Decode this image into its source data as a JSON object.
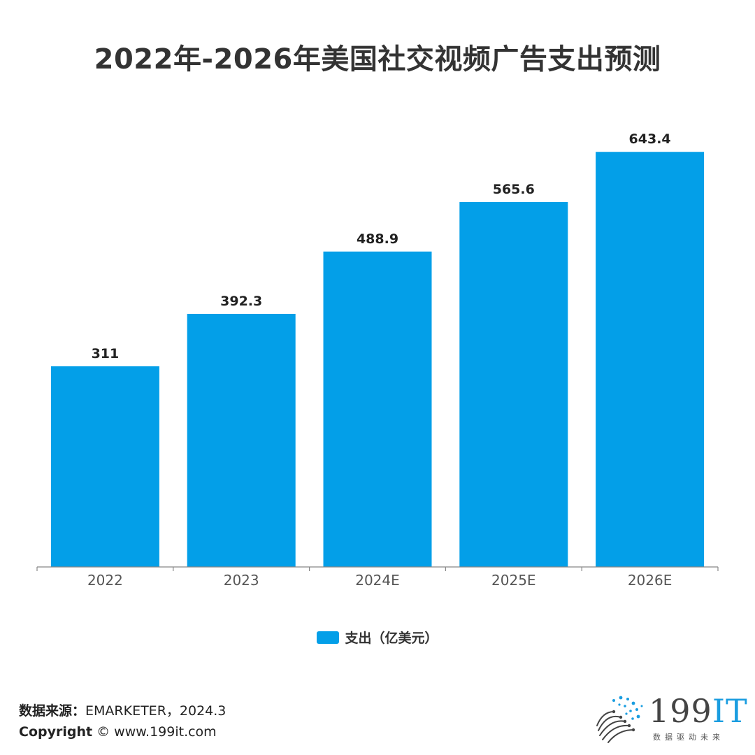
{
  "chart_data": {
    "type": "bar",
    "title": "2022年-2026年美国社交视频广告支出预测",
    "categories": [
      "2022",
      "2023",
      "2024E",
      "2025E",
      "2026E"
    ],
    "series": [
      {
        "name": "支出（亿美元）",
        "values": [
          311,
          392.3,
          488.9,
          565.6,
          643.4
        ]
      }
    ],
    "value_labels": [
      "311",
      "392.3",
      "488.9",
      "565.6",
      "643.4"
    ],
    "xlabel": "",
    "ylabel": "",
    "ylim": [
      0,
      700
    ],
    "grid": false,
    "legend_position": "bottom",
    "bar_color": "#039fe8"
  },
  "footer": {
    "source_label": "数据来源：",
    "source_value": "EMARKETER，2024.3",
    "copyright_label": "Copyright",
    "copyright_value": "© www.199it.com"
  },
  "logo": {
    "brand_number": "199",
    "brand_suffix": "IT",
    "tagline": "数据驱动未来"
  }
}
